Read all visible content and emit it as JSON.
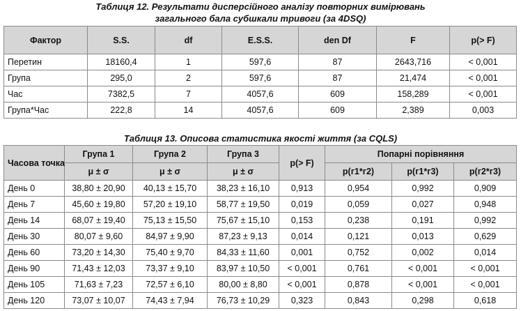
{
  "table12": {
    "caption": "Таблиця 12. Результати дисперсійного аналізу повторних вимірювань загального бала субшкали тривоги (за 4DSQ)",
    "header": [
      "Фактор",
      "S.S.",
      "df",
      "E.S.S.",
      "den Df",
      "F",
      "p(> F)"
    ],
    "rows": [
      [
        "Перетин",
        "18160,4",
        "1",
        "597,6",
        "87",
        "2643,716",
        "< 0,001"
      ],
      [
        "Група",
        "295,0",
        "2",
        "597,6",
        "87",
        "21,474",
        "< 0,001"
      ],
      [
        "Час",
        "7382,5",
        "7",
        "4057,6",
        "609",
        "158,289",
        "< 0,001"
      ],
      [
        "Група*Час",
        "222,8",
        "14",
        "4057,6",
        "609",
        "2,389",
        "0,003"
      ]
    ]
  },
  "table13": {
    "caption": "Таблиця 13. Описова статистика якості життя (за CQLS)",
    "header_top": [
      "Часова точка",
      "Група 1",
      "Група 2",
      "Група 3",
      "p(> F)",
      "Попарні порівняння"
    ],
    "header_sub": [
      "μ ± σ",
      "μ ± σ",
      "μ ± σ",
      "p(г1*г2)",
      "p(г1*г3)",
      "p(г2*г3)"
    ],
    "rows": [
      [
        "День 0",
        "38,80 ± 20,90",
        "40,13 ± 15,70",
        "38,23 ± 16,10",
        "0,913",
        "0,954",
        "0,992",
        "0,909"
      ],
      [
        "День 7",
        "45,60 ± 19,80",
        "57,20 ± 19,10",
        "58,77 ± 19,50",
        "0,019",
        "0,059",
        "0,027",
        "0,948"
      ],
      [
        "День 14",
        "68,07 ± 19,40",
        "75,13 ± 15,50",
        "75,67 ± 15,10",
        "0,153",
        "0,238",
        "0,191",
        "0,992"
      ],
      [
        "День 30",
        "80,07 ± 9,60",
        "84,97 ± 9,90",
        "87,23 ± 9,13",
        "0,014",
        "0,121",
        "0,013",
        "0,629"
      ],
      [
        "День 60",
        "73,20 ± 14,30",
        "75,40 ± 9,70",
        "84,33 ± 11,60",
        "0,001",
        "0,752",
        "0,002",
        "0,014"
      ],
      [
        "День 90",
        "71,43 ± 12,03",
        "73,37 ± 9,10",
        "83,97 ± 10,50",
        "< 0,001",
        "0,761",
        "< 0,001",
        "< 0,001"
      ],
      [
        "День 105",
        "71,63 ± 7,23",
        "72,57 ± 6,10",
        "80,00 ± 8,80",
        "< 0,001",
        "0,878",
        "< 0,001",
        "< 0,001"
      ],
      [
        "День 120",
        "73,07 ± 10,07",
        "74,43 ± 7,94",
        "76,73 ± 10,29",
        "0,323",
        "0,843",
        "0,298",
        "0,618"
      ]
    ]
  }
}
